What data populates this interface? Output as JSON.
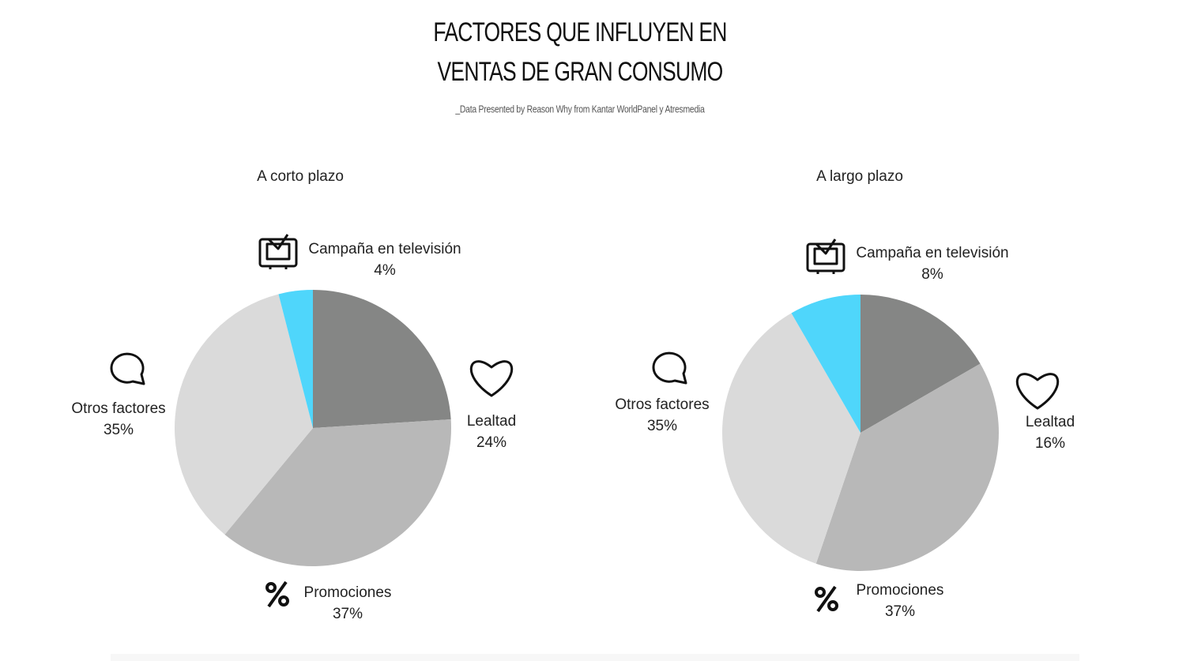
{
  "title": [
    "FACTORES QUE INFLUYEN EN",
    "VENTAS DE GRAN CONSUMO"
  ],
  "subtitle": "_Data Presented by Reason Why from Kantar WorldPanel y Atresmedia",
  "chart_data": [
    {
      "type": "pie",
      "title": "A corto plazo",
      "categories": [
        "Lealtad",
        "Promociones",
        "Otros factores",
        "Campaña en televisión"
      ],
      "values": [
        24,
        37,
        35,
        4
      ],
      "value_labels": [
        "24%",
        "37%",
        "35%",
        "4%"
      ],
      "colors": [
        "#858685",
        "#b8b8b8",
        "#dadada",
        "#4fd6fb"
      ]
    },
    {
      "type": "pie",
      "title": "A largo plazo",
      "categories": [
        "Lealtad",
        "Promociones",
        "Otros factores",
        "Campaña en televisión"
      ],
      "values": [
        16,
        37,
        35,
        8
      ],
      "value_labels": [
        "16%",
        "37%",
        "35%",
        "8%"
      ],
      "colors": [
        "#858685",
        "#b8b8b8",
        "#dadada",
        "#4fd6fb"
      ]
    }
  ]
}
